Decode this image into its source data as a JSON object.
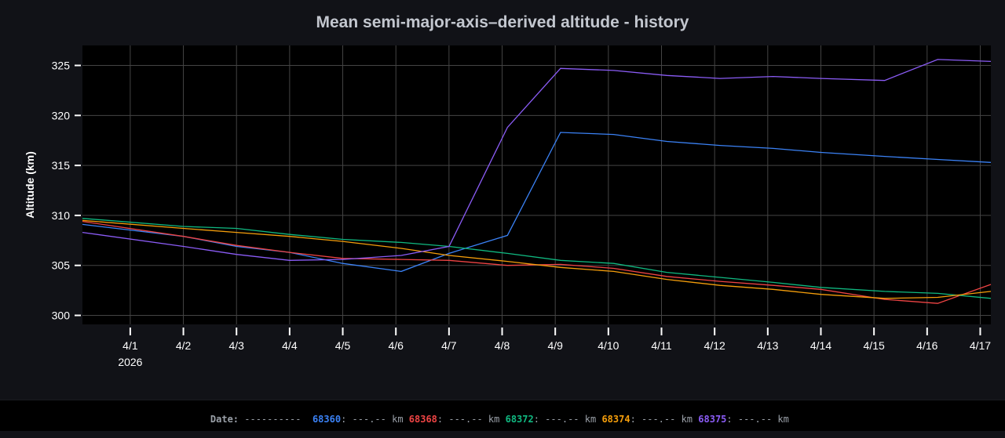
{
  "chart_data": {
    "type": "line",
    "title": "Mean semi-major-axis–derived altitude - history",
    "xlabel": "",
    "ylabel": "Altitude (km)",
    "x_unit": "days since 2026-03-31",
    "xlim": [
      0.1,
      17.2
    ],
    "ylim": [
      299.1,
      327
    ],
    "yticks": [
      300,
      305,
      310,
      315,
      320,
      325
    ],
    "xticks": [
      {
        "day": 1,
        "label": "4/1",
        "sub": "2026"
      },
      {
        "day": 2,
        "label": "4/2"
      },
      {
        "day": 3,
        "label": "4/3"
      },
      {
        "day": 4,
        "label": "4/4"
      },
      {
        "day": 5,
        "label": "4/5"
      },
      {
        "day": 6,
        "label": "4/6"
      },
      {
        "day": 7,
        "label": "4/7"
      },
      {
        "day": 8,
        "label": "4/8"
      },
      {
        "day": 9,
        "label": "4/9"
      },
      {
        "day": 10,
        "label": "4/10"
      },
      {
        "day": 11,
        "label": "4/11"
      },
      {
        "day": 12,
        "label": "4/12"
      },
      {
        "day": 13,
        "label": "4/13"
      },
      {
        "day": 14,
        "label": "4/14"
      },
      {
        "day": 15,
        "label": "4/15"
      },
      {
        "day": 16,
        "label": "4/16"
      },
      {
        "day": 17,
        "label": "4/17"
      }
    ],
    "grid": true,
    "x": [
      0.1,
      2.0,
      3.0,
      4.0,
      5.0,
      6.1,
      7.0,
      8.1,
      9.1,
      10.1,
      11.1,
      12.1,
      13.1,
      14.0,
      15.2,
      16.2,
      17.2
    ],
    "series": [
      {
        "name": "68360",
        "color": "#3b82f6",
        "values": [
          309.1,
          307.9,
          306.9,
          306.3,
          305.2,
          304.4,
          306.2,
          308.0,
          318.3,
          318.1,
          317.4,
          317.0,
          316.7,
          316.3,
          315.9,
          315.6,
          315.3
        ]
      },
      {
        "name": "68368",
        "color": "#ef4444",
        "values": [
          309.4,
          307.9,
          307.0,
          306.3,
          305.7,
          305.6,
          305.5,
          305.0,
          305.1,
          304.7,
          303.9,
          303.4,
          303.0,
          302.6,
          301.6,
          301.2,
          303.1
        ]
      },
      {
        "name": "68372",
        "color": "#10b981",
        "values": [
          309.7,
          308.9,
          308.7,
          308.1,
          307.6,
          307.3,
          306.9,
          306.2,
          305.5,
          305.2,
          304.3,
          303.8,
          303.3,
          302.8,
          302.4,
          302.2,
          301.7
        ]
      },
      {
        "name": "68374",
        "color": "#f59e0b",
        "values": [
          309.5,
          308.7,
          308.3,
          307.9,
          307.4,
          306.7,
          306.0,
          305.4,
          304.8,
          304.4,
          303.6,
          303.0,
          302.6,
          302.1,
          301.7,
          301.8,
          302.4
        ]
      },
      {
        "name": "68375",
        "color": "#8b5cf6",
        "values": [
          308.3,
          306.9,
          306.1,
          305.5,
          305.6,
          306.0,
          306.9,
          318.8,
          324.7,
          324.5,
          324.0,
          323.7,
          323.9,
          323.7,
          323.5,
          325.6,
          325.4
        ]
      }
    ]
  },
  "legend": {
    "date_label": "Date:",
    "date_value": "----------",
    "value_placeholder": "---.--",
    "unit": "km"
  }
}
